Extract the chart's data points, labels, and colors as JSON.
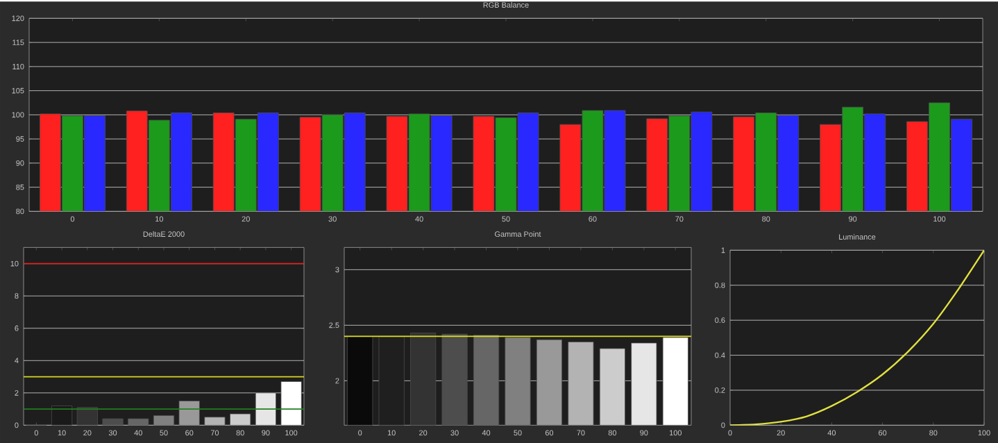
{
  "chart_data": [
    {
      "type": "bar",
      "title": "RGB Balance",
      "categories": [
        "0",
        "10",
        "20",
        "30",
        "40",
        "50",
        "60",
        "70",
        "80",
        "90",
        "100"
      ],
      "series": [
        {
          "color": "#ff2020",
          "values": [
            100.2,
            100.8,
            100.4,
            99.5,
            99.7,
            99.7,
            98.0,
            99.2,
            99.6,
            98.0,
            98.6
          ]
        },
        {
          "color": "#1c9a1c",
          "values": [
            99.8,
            98.9,
            99.1,
            100.0,
            100.2,
            99.4,
            100.9,
            99.8,
            100.4,
            101.6,
            102.5
          ]
        },
        {
          "color": "#2828ff",
          "values": [
            99.8,
            100.4,
            100.4,
            100.4,
            99.8,
            100.4,
            100.9,
            100.6,
            99.9,
            100.2,
            99.1
          ]
        }
      ],
      "ylim": [
        80,
        120
      ],
      "yticks": [
        80,
        85,
        90,
        95,
        100,
        105,
        110,
        115,
        120
      ],
      "grid": "y"
    },
    {
      "type": "bar",
      "title": "DeltaE 2000",
      "categories": [
        "0",
        "10",
        "20",
        "30",
        "40",
        "50",
        "60",
        "70",
        "80",
        "90",
        "100"
      ],
      "values": [
        0.0,
        1.2,
        1.1,
        0.4,
        0.4,
        0.6,
        1.5,
        0.5,
        0.7,
        2.0,
        2.7
      ],
      "colors": [
        "#0a0a0a",
        "#1a1a1a",
        "#333333",
        "#4d4d4d",
        "#666666",
        "#808080",
        "#999999",
        "#b3b3b3",
        "#cccccc",
        "#e6e6e6",
        "#ffffff"
      ],
      "ylim": [
        0,
        11
      ],
      "yticks": [
        0,
        2,
        4,
        6,
        8,
        10
      ],
      "grid": "y",
      "ref_lines": [
        {
          "axis": "y",
          "value": 10,
          "color": "#e02020"
        },
        {
          "axis": "y",
          "value": 3,
          "color": "#d8d820"
        },
        {
          "axis": "y",
          "value": 1,
          "color": "#208020"
        }
      ]
    },
    {
      "type": "bar",
      "title": "Gamma Point",
      "categories": [
        "0",
        "10",
        "20",
        "30",
        "40",
        "50",
        "60",
        "70",
        "80",
        "90",
        "100"
      ],
      "values": [
        2.4,
        2.4,
        2.43,
        2.42,
        2.41,
        2.39,
        2.37,
        2.35,
        2.29,
        2.34,
        2.39
      ],
      "colors": [
        "#0a0a0a",
        "#1f1f1f",
        "#333333",
        "#4d4d4d",
        "#666666",
        "#808080",
        "#999999",
        "#b3b3b3",
        "#cccccc",
        "#e6e6e6",
        "#ffffff"
      ],
      "ylim": [
        1.6,
        3.2
      ],
      "yticks": [
        2,
        2.5,
        3
      ],
      "grid": "y",
      "ref_lines": [
        {
          "axis": "y",
          "value": 2.4,
          "color": "#e0e020"
        }
      ]
    },
    {
      "type": "line",
      "title": "Luminance",
      "x": [
        0,
        10,
        20,
        30,
        40,
        50,
        60,
        70,
        80,
        90,
        100
      ],
      "values": [
        0.0,
        0.005,
        0.02,
        0.05,
        0.11,
        0.19,
        0.29,
        0.42,
        0.58,
        0.78,
        1.0
      ],
      "color": "#e0e040",
      "xlim": [
        0,
        100
      ],
      "ylim": [
        0,
        1
      ],
      "xticks": [
        0,
        20,
        40,
        60,
        80,
        100
      ],
      "yticks": [
        0,
        0.2,
        0.4,
        0.6,
        0.8,
        1
      ],
      "grid": "y"
    }
  ]
}
